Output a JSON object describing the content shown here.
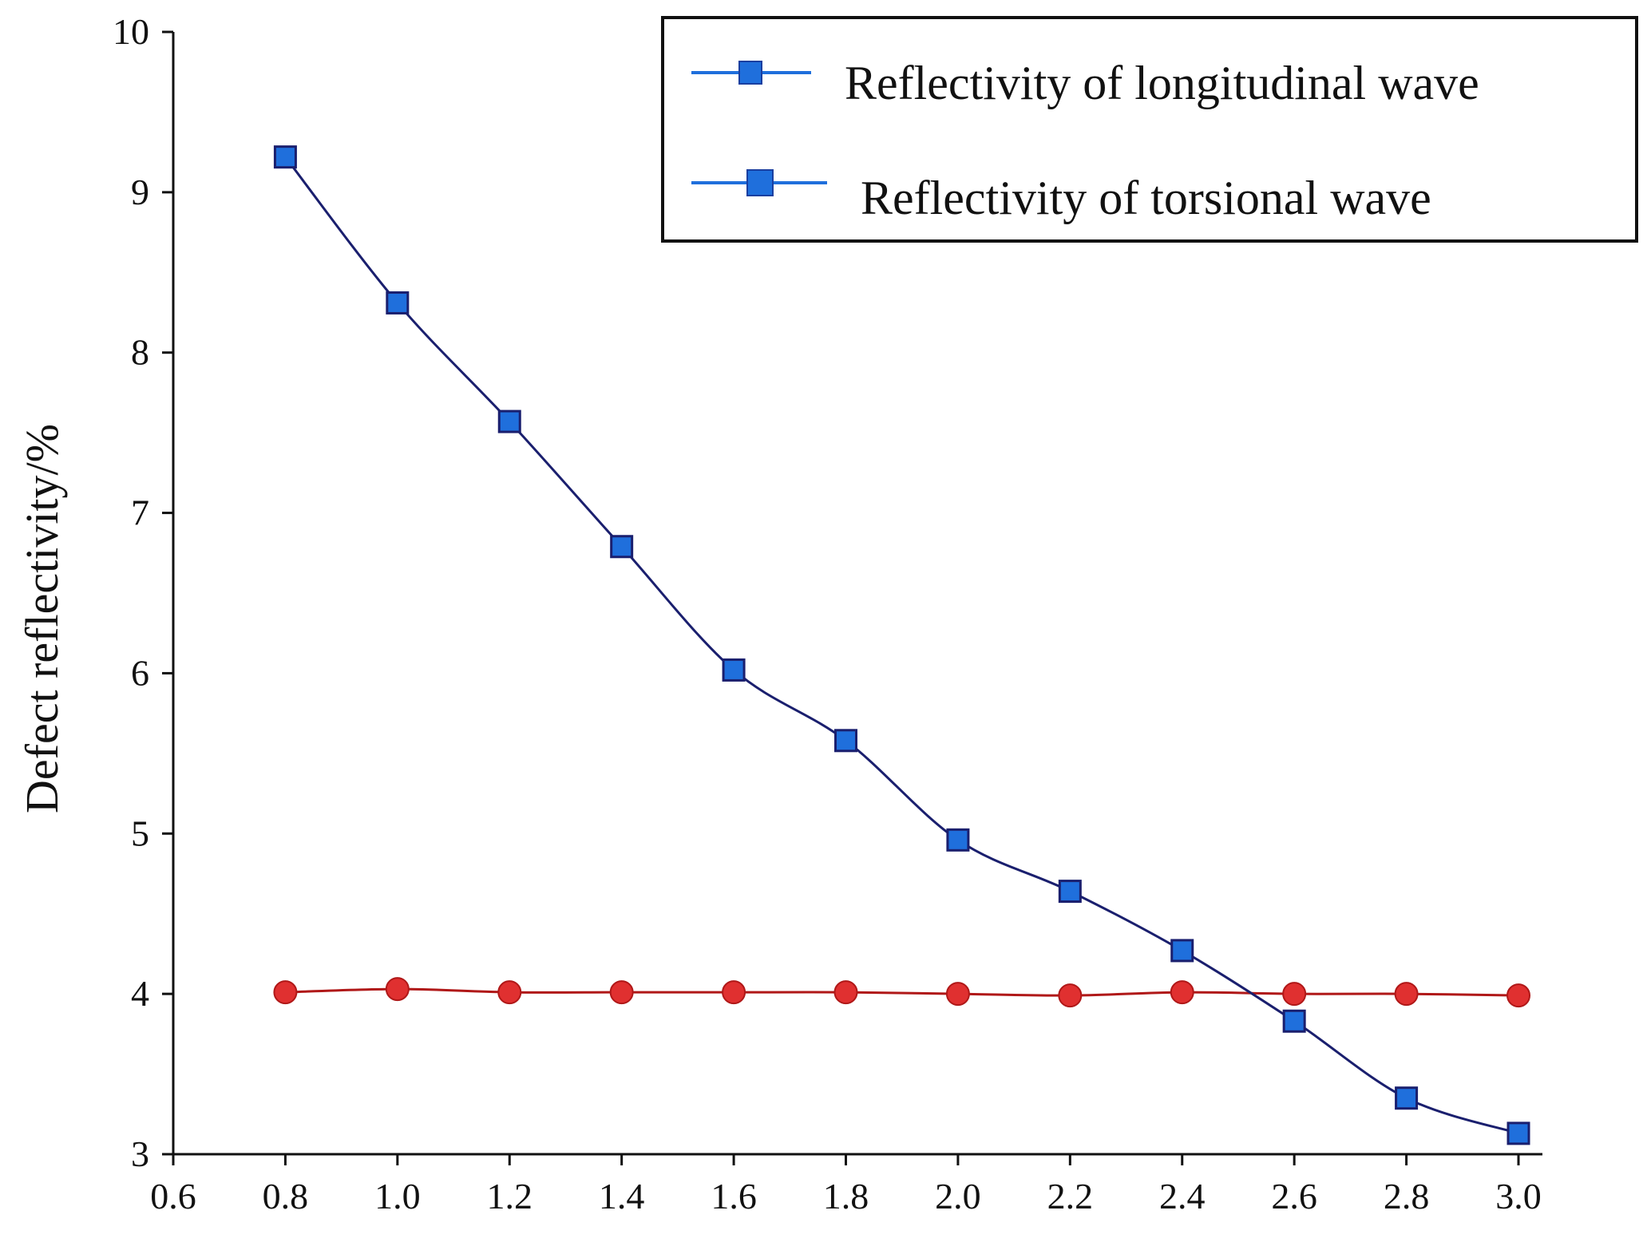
{
  "chart_data": {
    "type": "line",
    "title": "",
    "xlabel": "",
    "ylabel": "Defect reflectivity/%",
    "xlim": [
      0.6,
      3.0
    ],
    "ylim": [
      3,
      10
    ],
    "x_ticks": [
      "0.6",
      "0.8",
      "1.0",
      "1.2",
      "1.4",
      "1.6",
      "1.8",
      "2.0",
      "2.2",
      "2.4",
      "2.6",
      "2.8",
      "3.0"
    ],
    "y_ticks": [
      "3",
      "4",
      "5",
      "6",
      "7",
      "8",
      "9",
      "10"
    ],
    "grid": false,
    "legend_position": "top-right",
    "x": [
      0.8,
      1.0,
      1.2,
      1.4,
      1.6,
      1.8,
      2.0,
      2.2,
      2.4,
      2.6,
      2.8,
      3.0
    ],
    "series": [
      {
        "name": "Reflectivity of longitudinal wave",
        "line_color": "#1a1f6e",
        "marker_color": "#1f6fdc",
        "marker": "square",
        "values": [
          9.22,
          8.31,
          7.57,
          6.79,
          6.02,
          5.58,
          4.96,
          4.64,
          4.27,
          3.83,
          3.35,
          3.13
        ]
      },
      {
        "name": "Reflectivity of torsional wave",
        "line_color": "#b01818",
        "marker_color": "#e03030",
        "marker": "circle",
        "values": [
          4.01,
          4.03,
          4.01,
          4.01,
          4.01,
          4.01,
          4.0,
          3.99,
          4.01,
          4.0,
          4.0,
          3.99
        ]
      }
    ],
    "legend": [
      {
        "label": "Reflectivity of longitudinal wave",
        "marker_color": "#1f6fdc",
        "line_color": "#1f6fdc"
      },
      {
        "label": "Reflectivity of torsional wave",
        "marker_color": "#1f6fdc",
        "line_color": "#1f6fdc"
      }
    ]
  }
}
